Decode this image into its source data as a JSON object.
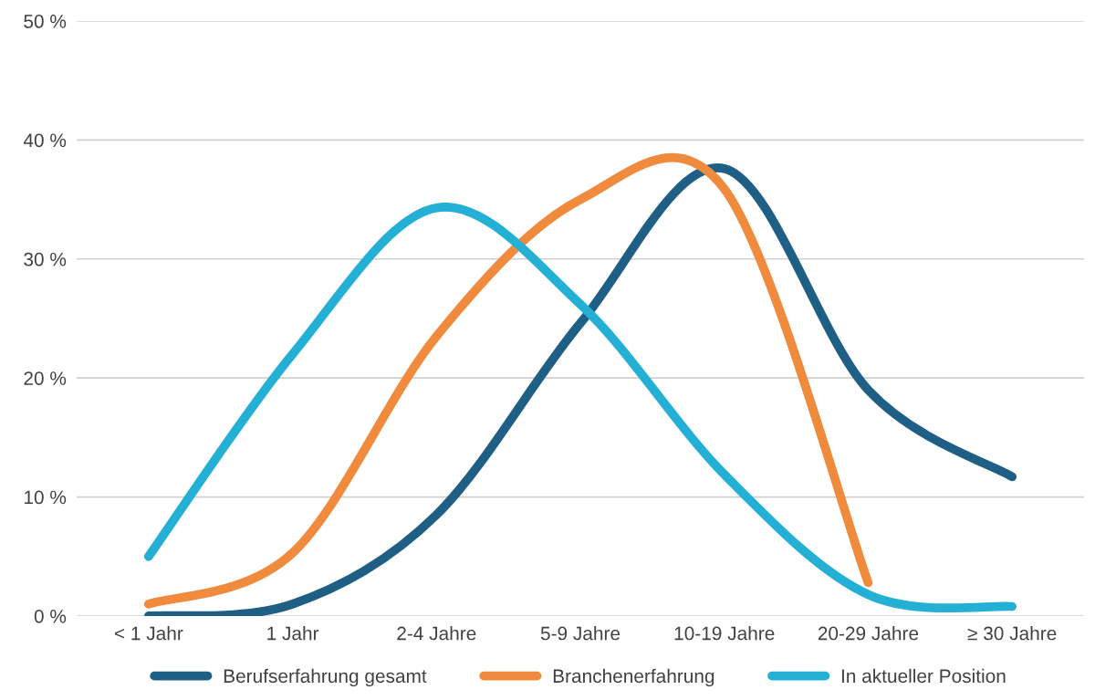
{
  "chart_data": {
    "type": "line",
    "categories": [
      "< 1 Jahr",
      "1 Jahr",
      "2-4 Jahre",
      "5-9 Jahre",
      "10-19 Jahre",
      "20-29 Jahre",
      "≥ 30 Jahre"
    ],
    "series": [
      {
        "name": "Berufserfahrung gesamt",
        "color": "#1f5f86",
        "values": [
          0,
          1,
          8.5,
          24.6,
          37.6,
          19,
          11.7
        ]
      },
      {
        "name": "Branchenerfahrung",
        "color": "#f08a3c",
        "values": [
          1,
          5.3,
          23.5,
          35,
          35.9,
          2.8,
          null
        ]
      },
      {
        "name": "In aktueller Position",
        "color": "#23b0d4",
        "values": [
          5,
          22,
          34.3,
          26.2,
          11.9,
          1.8,
          0.8
        ]
      }
    ],
    "ylim": [
      0,
      50
    ],
    "yticks": [
      {
        "value": 0,
        "label": "0 %"
      },
      {
        "value": 10,
        "label": "10 %"
      },
      {
        "value": 20,
        "label": "20 %"
      },
      {
        "value": 30,
        "label": "30 %"
      },
      {
        "value": 40,
        "label": "40 %"
      },
      {
        "value": 50,
        "label": "50 %"
      }
    ],
    "grid": "y",
    "legend": "bottom",
    "marker": "none",
    "line_style": "solid"
  }
}
